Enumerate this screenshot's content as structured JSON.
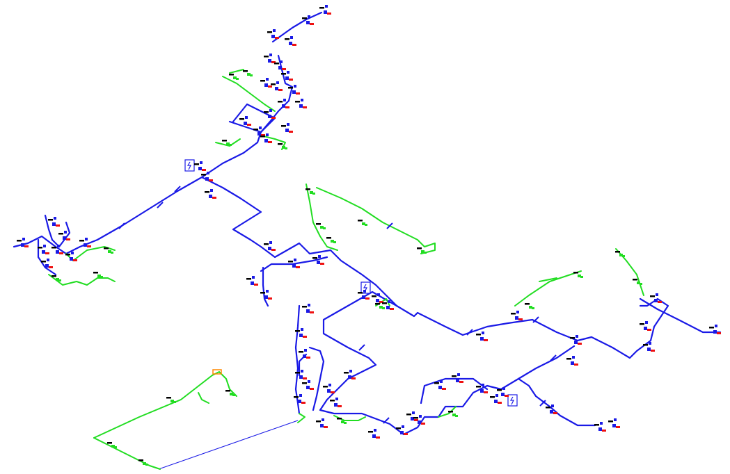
{
  "colors": {
    "background": "#ffffff",
    "supply_line": "#1a1ae6",
    "branch_line": "#22dd22",
    "fixture_red": "#ee1111",
    "fixture_blue": "#1a1ae6",
    "valve_orange": "#ff8800",
    "tag_black": "#000000"
  },
  "legend": [],
  "symbols": [
    {
      "name": "electric-panel-icon",
      "glyph": "lightning-bolt-in-box"
    },
    {
      "name": "electric-panel-icon",
      "glyph": "lightning-bolt-in-box"
    },
    {
      "name": "electric-panel-icon",
      "glyph": "lightning-bolt-in-box"
    }
  ]
}
